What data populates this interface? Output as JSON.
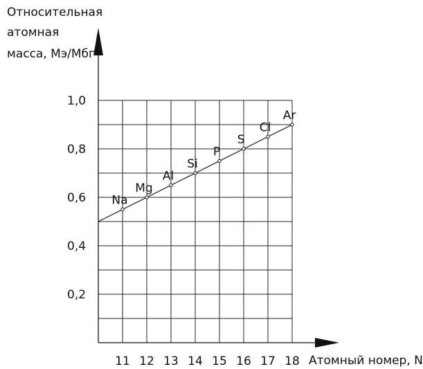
{
  "chart_data": {
    "type": "line",
    "title": "",
    "ylabel_lines": [
      "Относительная",
      "атомная",
      "масса, Mэ/Mбг"
    ],
    "xlabel": "Атомный номер, N",
    "x": [
      11,
      12,
      13,
      14,
      15,
      16,
      17,
      18
    ],
    "x_ticks": [
      "11",
      "12",
      "13",
      "14",
      "15",
      "16",
      "17",
      "18"
    ],
    "y_ticks": [
      "1,0",
      "0,8",
      "0,6",
      "0,4",
      "0,2"
    ],
    "y_tick_values": [
      1.0,
      0.8,
      0.6,
      0.4,
      0.2
    ],
    "xlim": [
      10,
      18
    ],
    "ylim": [
      0,
      1.0
    ],
    "grid": true,
    "series": [
      {
        "labels": [
          "Na",
          "Mg",
          "Al",
          "Si",
          "P",
          "S",
          "Cl",
          "Ar"
        ],
        "x": [
          11,
          12,
          13,
          14,
          15,
          16,
          17,
          18
        ],
        "y": [
          0.55,
          0.6,
          0.65,
          0.7,
          0.75,
          0.8,
          0.85,
          0.9
        ]
      }
    ],
    "trend_line_start": {
      "x": 10,
      "y": 0.5
    }
  }
}
